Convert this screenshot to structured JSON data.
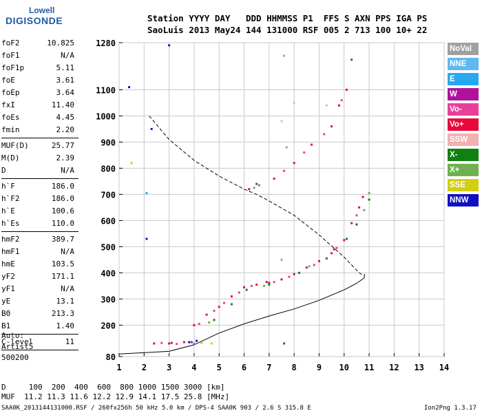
{
  "logo": {
    "line1": "Lowell",
    "line2": "DIGISONDE"
  },
  "header": {
    "labels": "Station YYYY DAY   DDD HHMMSS P1  FFS S AXN PPS IGA PS",
    "values": "SaoLuis 2013 May24 144 131000 RSF 005 2 713 100 10+ 22"
  },
  "params_group1": [
    {
      "k": "foF2",
      "v": "10.825"
    },
    {
      "k": "foF1",
      "v": "N/A"
    },
    {
      "k": "foF1p",
      "v": "5.11"
    },
    {
      "k": "foE",
      "v": "3.61"
    },
    {
      "k": "foEp",
      "v": "3.64"
    },
    {
      "k": "fxI",
      "v": "11.40"
    },
    {
      "k": "foEs",
      "v": "4.45"
    },
    {
      "k": "fmin",
      "v": "2.20"
    }
  ],
  "params_group2": [
    {
      "k": "MUF(D)",
      "v": "25.77"
    },
    {
      "k": "M(D)",
      "v": "2.39"
    },
    {
      "k": "D",
      "v": "N/A"
    }
  ],
  "params_group3": [
    {
      "k": "h`F",
      "v": "186.0"
    },
    {
      "k": "h`F2",
      "v": "186.0"
    },
    {
      "k": "h`E",
      "v": "100.6"
    },
    {
      "k": "h`Es",
      "v": "110.0"
    }
  ],
  "params_group4": [
    {
      "k": "hmF2",
      "v": "389.7"
    },
    {
      "k": "hmF1",
      "v": "N/A"
    },
    {
      "k": "hmE",
      "v": "103.5"
    },
    {
      "k": "yF2",
      "v": "171.1"
    },
    {
      "k": "yF1",
      "v": "N/A"
    },
    {
      "k": "yE",
      "v": "13.1"
    },
    {
      "k": "B0",
      "v": "213.3"
    },
    {
      "k": "B1",
      "v": "1.40"
    }
  ],
  "params_group5": [
    {
      "k": "C-level",
      "v": "11"
    }
  ],
  "auto": {
    "line1": "Auto:",
    "line2": "Artist5",
    "line3": "500200"
  },
  "legend": [
    {
      "label": "NoVal",
      "color": "#a0a0a0"
    },
    {
      "label": "NNE",
      "color": "#5fb8f0"
    },
    {
      "label": "E",
      "color": "#28a8f0"
    },
    {
      "label": "W",
      "color": "#b0109a"
    },
    {
      "label": "Vo-",
      "color": "#e8409a"
    },
    {
      "label": "Vo+",
      "color": "#e8083a"
    },
    {
      "label": "SSW",
      "color": "#f2b0b0"
    },
    {
      "label": "X-",
      "color": "#108010"
    },
    {
      "label": "X+",
      "color": "#70b050"
    },
    {
      "label": "SSE",
      "color": "#d0d010"
    },
    {
      "label": "NNW",
      "color": "#1010c0"
    }
  ],
  "bottom": {
    "d_row": "D     100  200  400  600  800 1000 1500 3000 [km]",
    "muf_row": "MUF  11.2 11.3 11.6 12.2 12.9 14.1 17.5 25.8 [MHz]"
  },
  "footer": {
    "left": "SAA0K_2013144131000.RSF / 260fx256h 50 kHz 5.0 km / DPS-4 SAA0K 903 / 2.6 S 315.8 E",
    "right": "Ion2Png 1.3.17"
  },
  "chart_data": {
    "type": "scatter",
    "xlim": [
      1,
      14
    ],
    "ylim": [
      80,
      1280
    ],
    "x_ticks": [
      1,
      2,
      3,
      4,
      5,
      6,
      7,
      8,
      9,
      10,
      11,
      12,
      13,
      14
    ],
    "y_ticks": [
      80,
      200,
      300,
      400,
      500,
      600,
      700,
      800,
      900,
      1000,
      1100,
      1280
    ],
    "grid": true,
    "series": [
      {
        "name": "Vo+",
        "color": "#e8083a",
        "points": [
          [
            4,
            200
          ],
          [
            4.5,
            240
          ],
          [
            5,
            270
          ],
          [
            5.5,
            310
          ],
          [
            6,
            345
          ],
          [
            6.5,
            355
          ],
          [
            7,
            362
          ],
          [
            7.5,
            375
          ],
          [
            8,
            395
          ],
          [
            8.5,
            420
          ],
          [
            9,
            445
          ],
          [
            9.5,
            475
          ],
          [
            10,
            525
          ],
          [
            10.3,
            590
          ],
          [
            10.6,
            650
          ],
          [
            10.75,
            690
          ],
          [
            6.2,
            720
          ],
          [
            7.2,
            760
          ],
          [
            8,
            820
          ],
          [
            8.7,
            890
          ],
          [
            9.5,
            960
          ],
          [
            9.8,
            1040
          ],
          [
            10.1,
            1100
          ],
          [
            2.4,
            130
          ],
          [
            3,
            130
          ],
          [
            3.6,
            135
          ]
        ]
      },
      {
        "name": "Vo-",
        "color": "#e8409a",
        "points": [
          [
            4.2,
            205
          ],
          [
            4.8,
            255
          ],
          [
            5.2,
            285
          ],
          [
            5.8,
            325
          ],
          [
            6.3,
            350
          ],
          [
            7.2,
            365
          ],
          [
            7.8,
            385
          ],
          [
            8.8,
            430
          ],
          [
            9.7,
            495
          ],
          [
            10.5,
            620
          ],
          [
            6.6,
            735
          ],
          [
            7.6,
            790
          ],
          [
            8.4,
            860
          ],
          [
            9.2,
            930
          ],
          [
            9.9,
            1060
          ],
          [
            2.7,
            132
          ],
          [
            3.3,
            128
          ]
        ]
      },
      {
        "name": "X-",
        "color": "#108010",
        "points": [
          [
            4.8,
            220
          ],
          [
            5.5,
            280
          ],
          [
            6.1,
            335
          ],
          [
            7,
            355
          ],
          [
            8.2,
            400
          ],
          [
            9.3,
            455
          ],
          [
            10.1,
            530
          ],
          [
            10.5,
            585
          ],
          [
            11,
            680
          ],
          [
            6.5,
            740
          ],
          [
            10.3,
            1215
          ],
          [
            7.6,
            130
          ]
        ]
      },
      {
        "name": "X+",
        "color": "#70b050",
        "points": [
          [
            4.6,
            210
          ],
          [
            6.8,
            350
          ],
          [
            8.6,
            425
          ],
          [
            10.8,
            640
          ],
          [
            11,
            705
          ],
          [
            6.4,
            725
          ]
        ]
      },
      {
        "name": "W",
        "color": "#b0109a",
        "points": [
          [
            3.1,
            132
          ],
          [
            3.9,
            135
          ],
          [
            6.9,
            365
          ],
          [
            9.6,
            490
          ]
        ]
      },
      {
        "name": "NNW",
        "color": "#1010c0",
        "points": [
          [
            3.8,
            135
          ],
          [
            4.1,
            140
          ],
          [
            2.1,
            530
          ],
          [
            2.3,
            950
          ],
          [
            3,
            1270
          ],
          [
            1.4,
            1110
          ]
        ]
      },
      {
        "name": "SSW",
        "color": "#f2b0b0",
        "points": [
          [
            8,
            1050
          ],
          [
            9.3,
            1040
          ],
          [
            7.5,
            980
          ]
        ]
      },
      {
        "name": "SSE",
        "color": "#d0d010",
        "points": [
          [
            4.3,
            132
          ],
          [
            4.7,
            130
          ],
          [
            1.5,
            820
          ]
        ]
      },
      {
        "name": "E",
        "color": "#28a8f0",
        "points": [
          [
            4,
            130
          ],
          [
            2.1,
            705
          ]
        ]
      },
      {
        "name": "NoVal",
        "color": "#a0a0a0",
        "points": [
          [
            7.6,
            1230
          ],
          [
            7.7,
            880
          ],
          [
            7.5,
            450
          ]
        ]
      }
    ],
    "dashed_curve": [
      [
        2.2,
        1000
      ],
      [
        3,
        910
      ],
      [
        4,
        830
      ],
      [
        5,
        770
      ],
      [
        6,
        720
      ],
      [
        6.5,
        700
      ],
      [
        7,
        675
      ],
      [
        8,
        620
      ],
      [
        9,
        545
      ],
      [
        10,
        460
      ],
      [
        10.6,
        400
      ],
      [
        10.8,
        390
      ]
    ],
    "solid_curve": [
      [
        1,
        90
      ],
      [
        3,
        100
      ],
      [
        4,
        125
      ],
      [
        5,
        170
      ],
      [
        6,
        205
      ],
      [
        7,
        235
      ],
      [
        8,
        262
      ],
      [
        9,
        295
      ],
      [
        10,
        335
      ],
      [
        10.5,
        360
      ],
      [
        10.8,
        380
      ],
      [
        10.82,
        395
      ]
    ]
  }
}
